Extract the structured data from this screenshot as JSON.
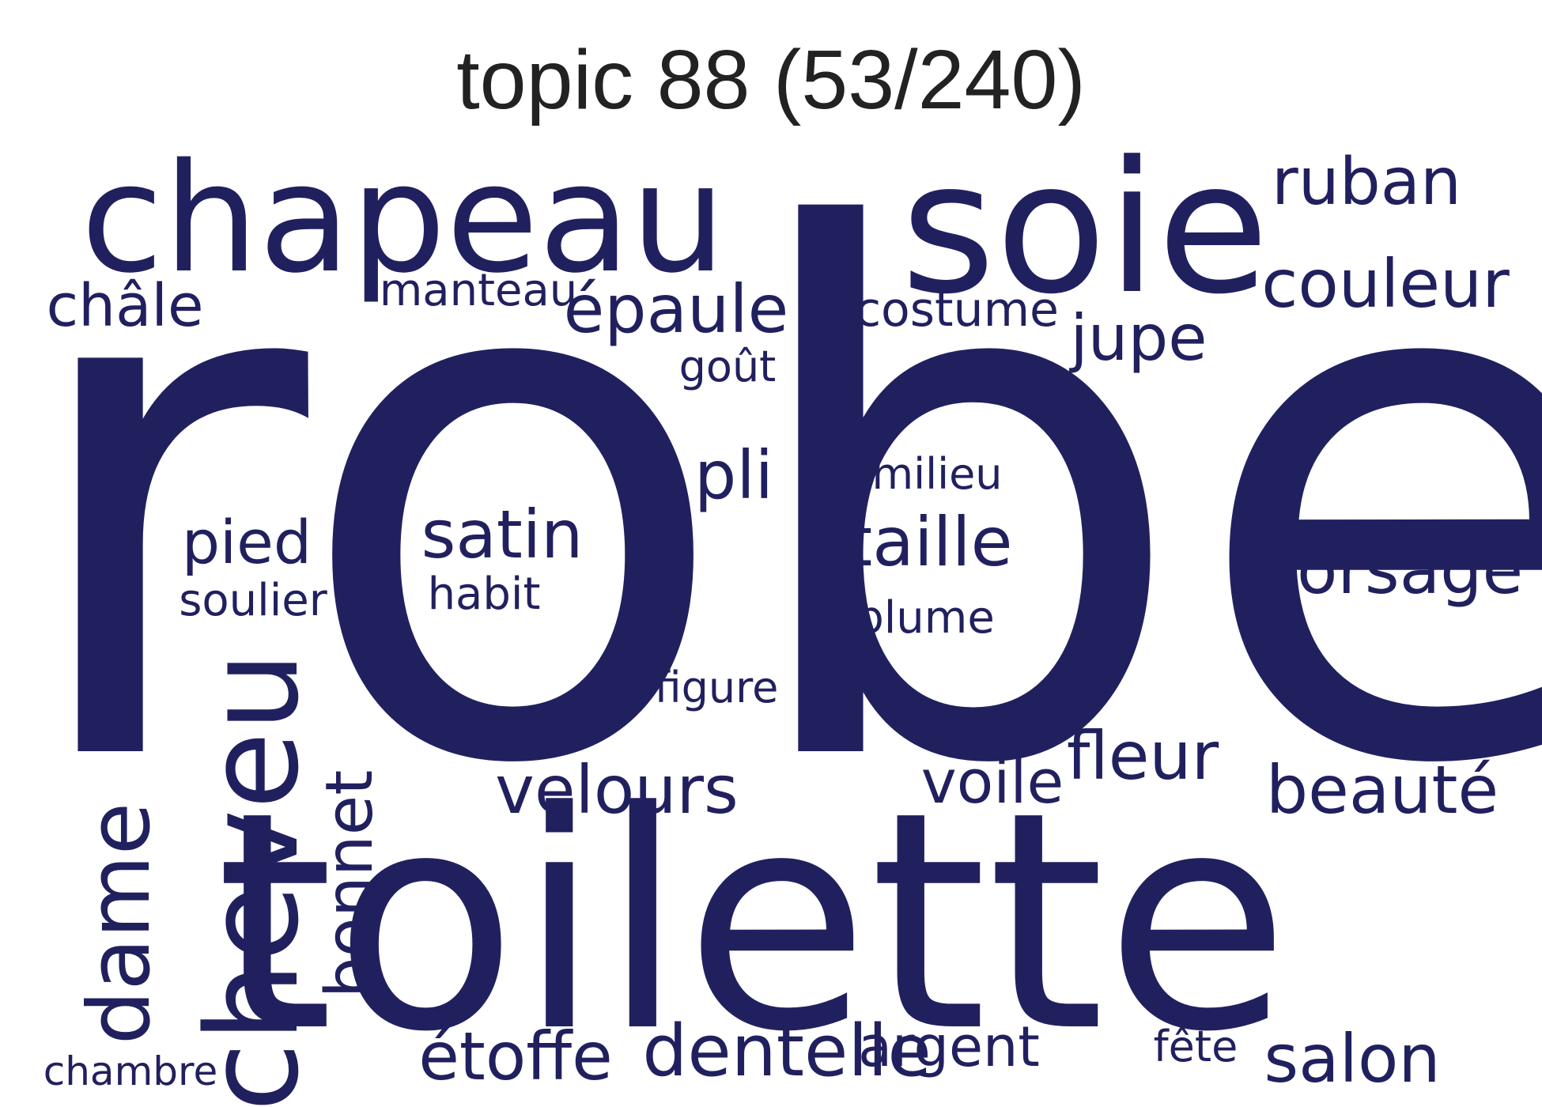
{
  "title": "topic 88 (53/240)",
  "word_color": "#21205f",
  "words": [
    {
      "text": "robe",
      "weight": 100,
      "vertical": false
    },
    {
      "text": "toilette",
      "weight": 62,
      "vertical": false
    },
    {
      "text": "soie",
      "weight": 38,
      "vertical": false
    },
    {
      "text": "chapeau",
      "weight": 34,
      "vertical": false
    },
    {
      "text": "cheveu",
      "weight": 28,
      "vertical": true
    },
    {
      "text": "dame",
      "weight": 20,
      "vertical": true
    },
    {
      "text": "bonnet",
      "weight": 14,
      "vertical": true
    },
    {
      "text": "velours",
      "weight": 15,
      "vertical": false
    },
    {
      "text": "beauté",
      "weight": 14,
      "vertical": false
    },
    {
      "text": "couleur",
      "weight": 14,
      "vertical": false
    },
    {
      "text": "corsage",
      "weight": 14,
      "vertical": false
    },
    {
      "text": "dentelle",
      "weight": 14,
      "vertical": false
    },
    {
      "text": "étoffe",
      "weight": 14,
      "vertical": false
    },
    {
      "text": "taille",
      "weight": 13,
      "vertical": false
    },
    {
      "text": "satin",
      "weight": 13,
      "vertical": false
    },
    {
      "text": "salon",
      "weight": 13,
      "vertical": false
    },
    {
      "text": "épaule",
      "weight": 13,
      "vertical": false
    },
    {
      "text": "ruban",
      "weight": 12,
      "vertical": false
    },
    {
      "text": "fleur",
      "weight": 12,
      "vertical": false
    },
    {
      "text": "pli",
      "weight": 12,
      "vertical": false
    },
    {
      "text": "jupe",
      "weight": 12,
      "vertical": false
    },
    {
      "text": "pied",
      "weight": 11,
      "vertical": false
    },
    {
      "text": "voile",
      "weight": 11,
      "vertical": false
    },
    {
      "text": "châle",
      "weight": 11,
      "vertical": false
    },
    {
      "text": "argent",
      "weight": 11,
      "vertical": false
    },
    {
      "text": "costume",
      "weight": 9,
      "vertical": false
    },
    {
      "text": "manteau",
      "weight": 9,
      "vertical": false
    },
    {
      "text": "soulier",
      "weight": 8,
      "vertical": false
    },
    {
      "text": "plume",
      "weight": 8,
      "vertical": false
    },
    {
      "text": "milieu",
      "weight": 8,
      "vertical": false
    },
    {
      "text": "habit",
      "weight": 8,
      "vertical": false
    },
    {
      "text": "goût",
      "weight": 8,
      "vertical": false
    },
    {
      "text": "figure",
      "weight": 8,
      "vertical": false
    },
    {
      "text": "fête",
      "weight": 8,
      "vertical": false
    },
    {
      "text": "chambre",
      "weight": 7,
      "vertical": false
    }
  ]
}
